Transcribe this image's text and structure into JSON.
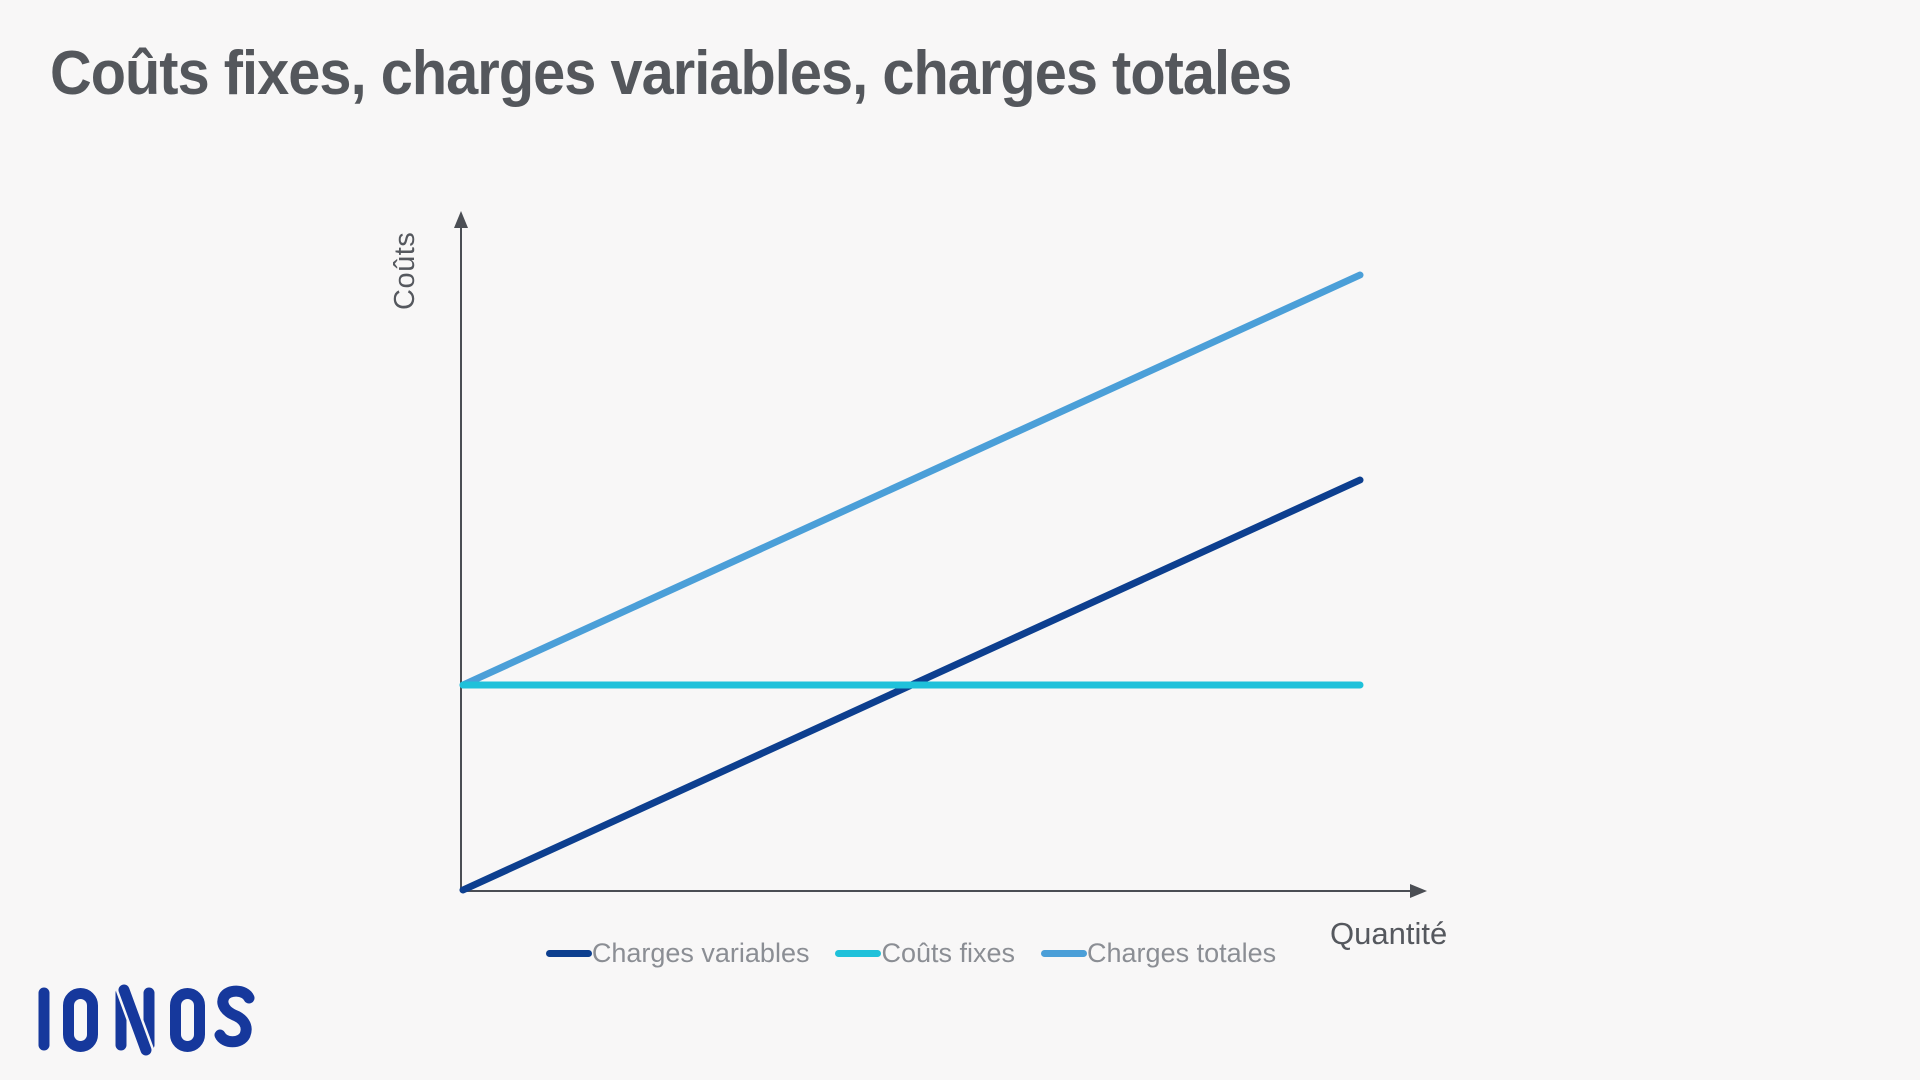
{
  "page": {
    "background": "#f8f7f7"
  },
  "title": "Coûts fixes, charges variables, charges totales",
  "branding": {
    "logo_text": "IONOS",
    "logo_color": "#16389c"
  },
  "chart_data": {
    "type": "line",
    "title": "Coûts fixes, charges variables, charges totales",
    "xlabel": "Quantité",
    "ylabel": "Coûts",
    "x_range": [
      0,
      10
    ],
    "y_range": [
      0,
      16.5
    ],
    "grid": false,
    "ticks": "none",
    "axis_style": "plain arrow axes without tick marks or numeric labels",
    "axis_color": "#4b4e54",
    "legend_position": "bottom-center",
    "series": [
      {
        "name": "Charges variables",
        "color": "#0d3f8f",
        "points": [
          [
            0,
            0
          ],
          [
            10,
            10
          ]
        ]
      },
      {
        "name": "Coûts fixes",
        "color": "#1fc1da",
        "points": [
          [
            0,
            5
          ],
          [
            10,
            5
          ]
        ]
      },
      {
        "name": "Charges totales",
        "color": "#4b9fd8",
        "points": [
          [
            0,
            5
          ],
          [
            10,
            15
          ]
        ]
      }
    ]
  }
}
